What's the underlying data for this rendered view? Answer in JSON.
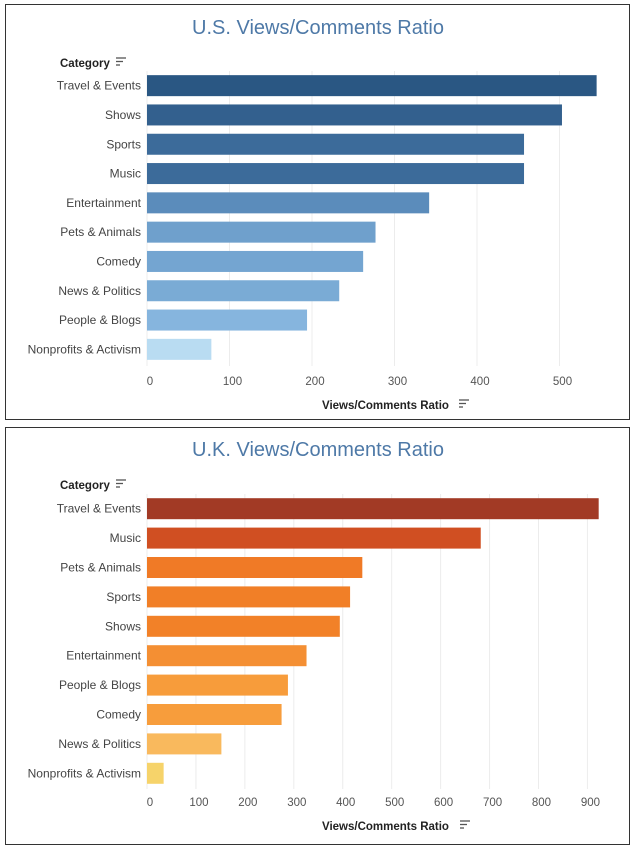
{
  "chart_data": [
    {
      "type": "bar",
      "orientation": "horizontal",
      "title": "U.S. Views/Comments Ratio",
      "category_header": "Category",
      "xlabel": "Views/Comments Ratio",
      "ylabel": "",
      "categories": [
        "Travel & Events",
        "Shows",
        "Sports",
        "Music",
        "Entertainment",
        "Pets & Animals",
        "Comedy",
        "News & Politics",
        "People & Blogs",
        "Nonprofits & Activism"
      ],
      "values": [
        545,
        503,
        457,
        457,
        342,
        277,
        262,
        233,
        194,
        78
      ],
      "colors": [
        "#2a5783",
        "#33608e",
        "#3c6b9a",
        "#3c6b9a",
        "#5b8cbb",
        "#6fa0cc",
        "#74a5d1",
        "#7aabd5",
        "#86b5de",
        "#b9dcf2"
      ],
      "xticks": [
        0,
        100,
        200,
        300,
        400,
        500
      ],
      "xlim": [
        0,
        560
      ],
      "grid": true
    },
    {
      "type": "bar",
      "orientation": "horizontal",
      "title": "U.K. Views/Comments Ratio",
      "category_header": "Category",
      "xlabel": "Views/Comments Ratio",
      "ylabel": "",
      "categories": [
        "Travel & Events",
        "Music",
        "Pets & Animals",
        "Sports",
        "Shows",
        "Entertainment",
        "People & Blogs",
        "Comedy",
        "News & Politics",
        "Nonprofits & Activism"
      ],
      "values": [
        923,
        682,
        440,
        415,
        394,
        326,
        288,
        275,
        152,
        34
      ],
      "colors": [
        "#a23a25",
        "#d04f22",
        "#f07a26",
        "#f17f27",
        "#f28128",
        "#f48f33",
        "#f79c3b",
        "#f79d3c",
        "#f9b95d",
        "#f6d36a"
      ],
      "xticks": [
        0,
        100,
        200,
        300,
        400,
        500,
        600,
        700,
        800,
        900
      ],
      "xlim": [
        0,
        940
      ],
      "grid": true
    }
  ]
}
